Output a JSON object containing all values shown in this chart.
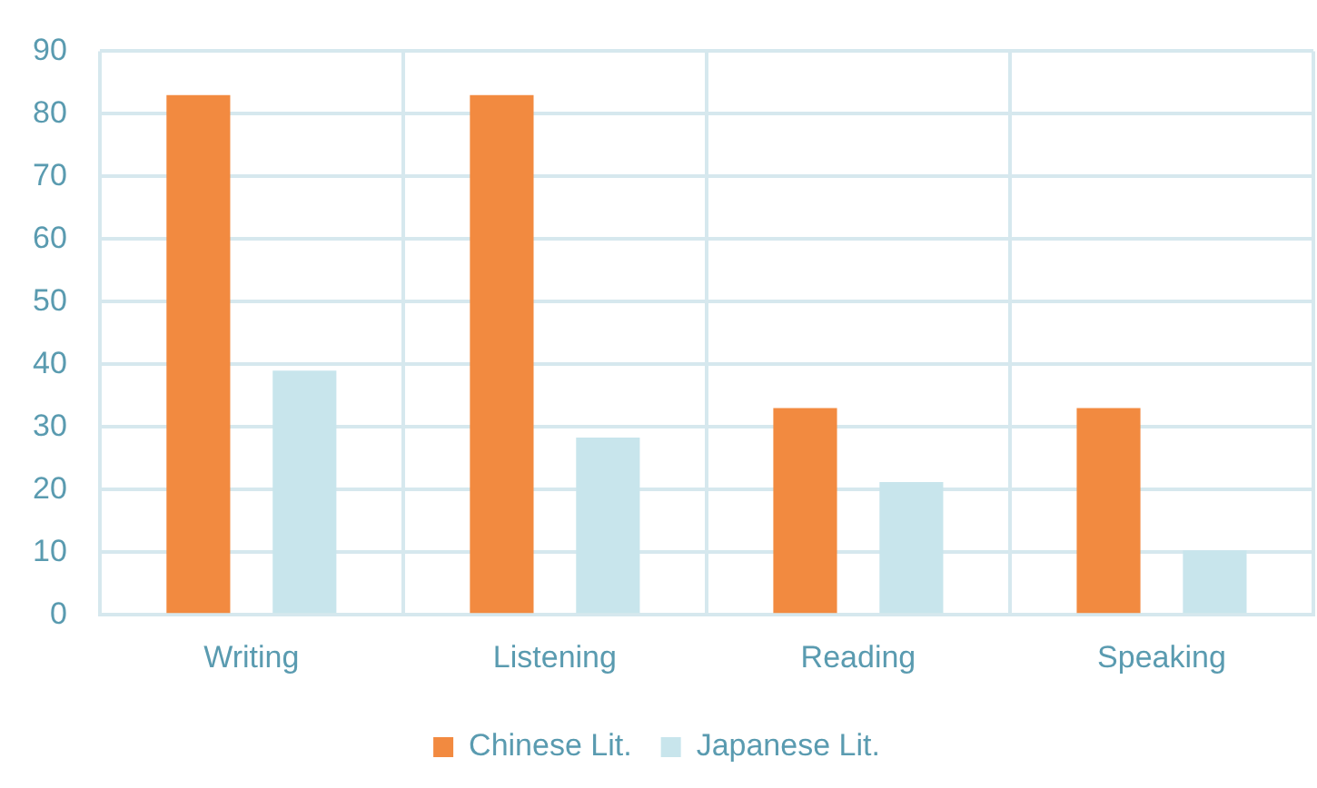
{
  "chart_data": {
    "type": "bar",
    "categories": [
      "Writing",
      "Listening",
      "Reading",
      "Speaking"
    ],
    "series": [
      {
        "name": "Chinese Lit.",
        "color": "#f28a40",
        "values": [
          83,
          83,
          33,
          33
        ]
      },
      {
        "name": "Japanese Lit.",
        "color": "#c8e5ec",
        "values": [
          39,
          28.3,
          21.2,
          10.3
        ]
      }
    ],
    "ylim": [
      0,
      90
    ],
    "yticks": [
      0,
      10,
      20,
      30,
      40,
      50,
      60,
      70,
      80,
      90
    ],
    "grid": true,
    "legend": "bottom"
  }
}
